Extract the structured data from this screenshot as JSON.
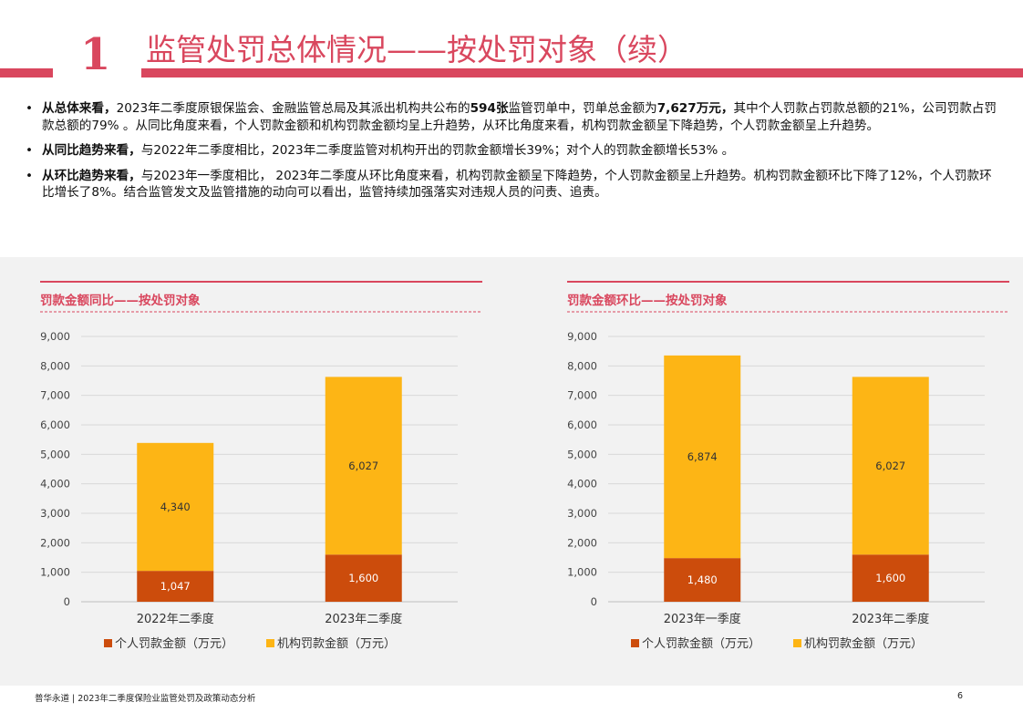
{
  "header": {
    "section_number": "1",
    "title": "监管处罚总体情况——按处罚对象（续）"
  },
  "bullets": [
    {
      "lead": "从总体来看，",
      "parts": [
        {
          "t": "2023年二季度原银保监会、金融监管总局及其派出机构共公布的",
          "b": false
        },
        {
          "t": "594张",
          "b": true
        },
        {
          "t": "监管罚单中，罚单总金额为",
          "b": false
        },
        {
          "t": "7,627万元，",
          "b": true
        },
        {
          "t": "其中个人罚款占罚款总额的21%，公司罚款占罚款总额的79% 。从同比角度来看，个人罚款金额和机构罚款金额均呈上升趋势，从环比角度来看，机构罚款金额呈下降趋势，个人罚款金额呈上升趋势。",
          "b": false
        }
      ]
    },
    {
      "lead": "从同比趋势来看，",
      "parts": [
        {
          "t": "与2022年二季度相比，2023年二季度监管对机构开出的罚款金额增长39%；对个人的罚款金额增长53% 。",
          "b": false
        }
      ]
    },
    {
      "lead": "从环比趋势来看，",
      "parts": [
        {
          "t": "与2023年一季度相比，  2023年二季度从环比角度来看，机构罚款金额呈下降趋势，个人罚款金额呈上升趋势。机构罚款金额环比下降了12%，个人罚款环比增长了8%。结合监管发文及监管措施的动向可以看出，监管持续加强落实对违规人员的问责、追责。",
          "b": false
        }
      ]
    }
  ],
  "colors": {
    "accent": "#d9475e",
    "individual": "#cc4c0c",
    "institution": "#fdb515"
  },
  "chart_data": [
    {
      "type": "bar",
      "stacked": true,
      "title": "罚款金额同比——按处罚对象",
      "categories": [
        "2022年二季度",
        "2023年二季度"
      ],
      "series": [
        {
          "name": "个人罚款金额（万元）",
          "values": [
            1047,
            1600
          ],
          "labels": [
            "1,047",
            "1,600"
          ],
          "color": "#cc4c0c"
        },
        {
          "name": "机构罚款金额（万元）",
          "values": [
            4340,
            6027
          ],
          "labels": [
            "4,340",
            "6,027"
          ],
          "color": "#fdb515"
        }
      ],
      "ylim": [
        0,
        9000
      ],
      "yticks": [
        0,
        1000,
        2000,
        3000,
        4000,
        5000,
        6000,
        7000,
        8000,
        9000
      ],
      "ytick_labels": [
        "0",
        "1,000",
        "2,000",
        "3,000",
        "4,000",
        "5,000",
        "6,000",
        "7,000",
        "8,000",
        "9,000"
      ],
      "grid": true,
      "legend": "bottom"
    },
    {
      "type": "bar",
      "stacked": true,
      "title": "罚款金额环比——按处罚对象",
      "categories": [
        "2023年一季度",
        "2023年二季度"
      ],
      "series": [
        {
          "name": "个人罚款金额（万元）",
          "values": [
            1480,
            1600
          ],
          "labels": [
            "1,480",
            "1,600"
          ],
          "color": "#cc4c0c"
        },
        {
          "name": "机构罚款金额（万元）",
          "values": [
            6874,
            6027
          ],
          "labels": [
            "6,874",
            "6,027"
          ],
          "color": "#fdb515"
        }
      ],
      "ylim": [
        0,
        9000
      ],
      "yticks": [
        0,
        1000,
        2000,
        3000,
        4000,
        5000,
        6000,
        7000,
        8000,
        9000
      ],
      "ytick_labels": [
        "0",
        "1,000",
        "2,000",
        "3,000",
        "4,000",
        "5,000",
        "6,000",
        "7,000",
        "8,000",
        "9,000"
      ],
      "grid": true,
      "legend": "bottom"
    }
  ],
  "footer": {
    "text": "普华永道 | 2023年二季度保险业监管处罚及政策动态分析",
    "page": "6"
  }
}
